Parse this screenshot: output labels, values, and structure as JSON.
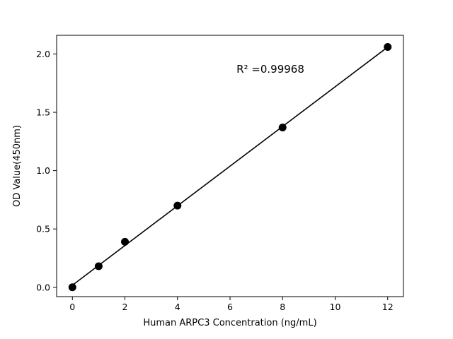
{
  "chart_data": {
    "type": "scatter",
    "title": "",
    "xlabel": "Human ARPC3 Concentration (ng/mL)",
    "ylabel": "OD Value(450nm)",
    "annotation": "R² =0.99968",
    "x": [
      0,
      1,
      2,
      4,
      8,
      12
    ],
    "y": [
      0.0,
      0.18,
      0.39,
      0.7,
      1.37,
      2.06
    ],
    "fit": {
      "slope": 0.1701,
      "intercept": 0.0178,
      "x_range": [
        0,
        12
      ]
    },
    "xticks": [
      0,
      2,
      4,
      6,
      8,
      10,
      12
    ],
    "yticks": [
      0.0,
      0.5,
      1.0,
      1.5,
      2.0
    ],
    "xlim": [
      -0.6,
      12.6
    ],
    "ylim": [
      -0.08,
      2.16
    ],
    "grid": false,
    "legend": "none",
    "marker_color": "#000000",
    "line_color": "#000000",
    "axis_color": "#000000",
    "background_color": "#ffffff"
  }
}
